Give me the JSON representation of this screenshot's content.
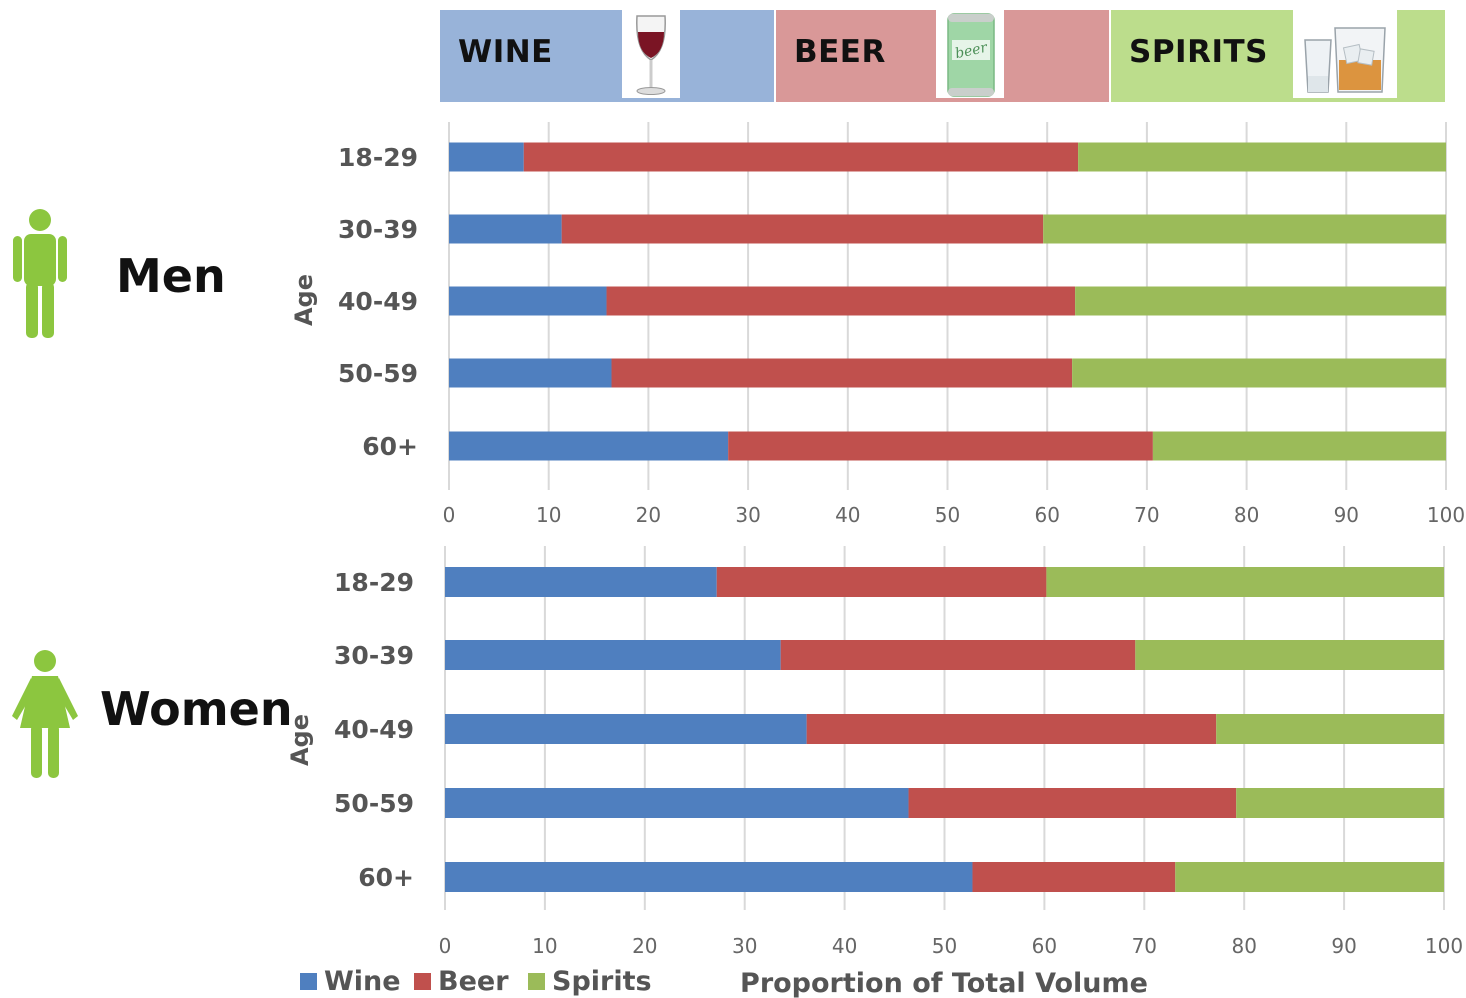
{
  "header": {
    "bands": [
      {
        "key": "wine",
        "label": "WINE",
        "color": "#98b3d9"
      },
      {
        "key": "beer",
        "label": "BEER",
        "color": "#d99898"
      },
      {
        "key": "spirits",
        "label": "SPIRITS",
        "color": "#bcdd8c"
      }
    ],
    "beer_can_text": "beer"
  },
  "icons": [
    "man-icon",
    "woman-icon",
    "wine-glass-icon",
    "beer-can-icon",
    "spirits-glasses-icon"
  ],
  "colors": {
    "wine": "#4f7fbf",
    "beer": "#c0504d",
    "spirits": "#9bbb59",
    "figure": "#8cc63f"
  },
  "legend": [
    {
      "key": "wine",
      "label": "Wine"
    },
    {
      "key": "beer",
      "label": "Beer"
    },
    {
      "key": "spirits",
      "label": "Spirits"
    }
  ],
  "xlabel": "Proportion of Total Volume",
  "chart_data": [
    {
      "type": "bar",
      "stacked": true,
      "orientation": "horizontal",
      "group_label": "Men",
      "ylabel": "Age",
      "categories": [
        "18-29",
        "30-39",
        "40-49",
        "50-59",
        "60+"
      ],
      "xlim": [
        0,
        100
      ],
      "xticks": [
        "0",
        "10",
        "20",
        "30",
        "40",
        "50",
        "60",
        "70",
        "80",
        "90",
        "100"
      ],
      "grid": true,
      "series": [
        {
          "name": "Wine",
          "values": [
            7.5,
            11.3,
            15.8,
            16.3,
            28.0
          ]
        },
        {
          "name": "Beer",
          "values": [
            55.6,
            48.3,
            47.0,
            46.2,
            42.6
          ]
        },
        {
          "name": "Spirits",
          "values": [
            36.9,
            40.4,
            37.2,
            37.5,
            29.4
          ]
        }
      ]
    },
    {
      "type": "bar",
      "stacked": true,
      "orientation": "horizontal",
      "group_label": "Women",
      "ylabel": "Age",
      "categories": [
        "18-29",
        "30-39",
        "40-49",
        "50-59",
        "60+"
      ],
      "xlim": [
        0,
        100
      ],
      "xticks": [
        "0",
        "10",
        "20",
        "30",
        "40",
        "50",
        "60",
        "70",
        "80",
        "90",
        "100"
      ],
      "grid": true,
      "series": [
        {
          "name": "Wine",
          "values": [
            27.2,
            33.6,
            36.2,
            46.4,
            52.8
          ]
        },
        {
          "name": "Beer",
          "values": [
            33.0,
            35.5,
            41.0,
            32.8,
            20.3
          ]
        },
        {
          "name": "Spirits",
          "values": [
            39.8,
            30.9,
            22.8,
            20.8,
            26.9
          ]
        }
      ]
    }
  ]
}
